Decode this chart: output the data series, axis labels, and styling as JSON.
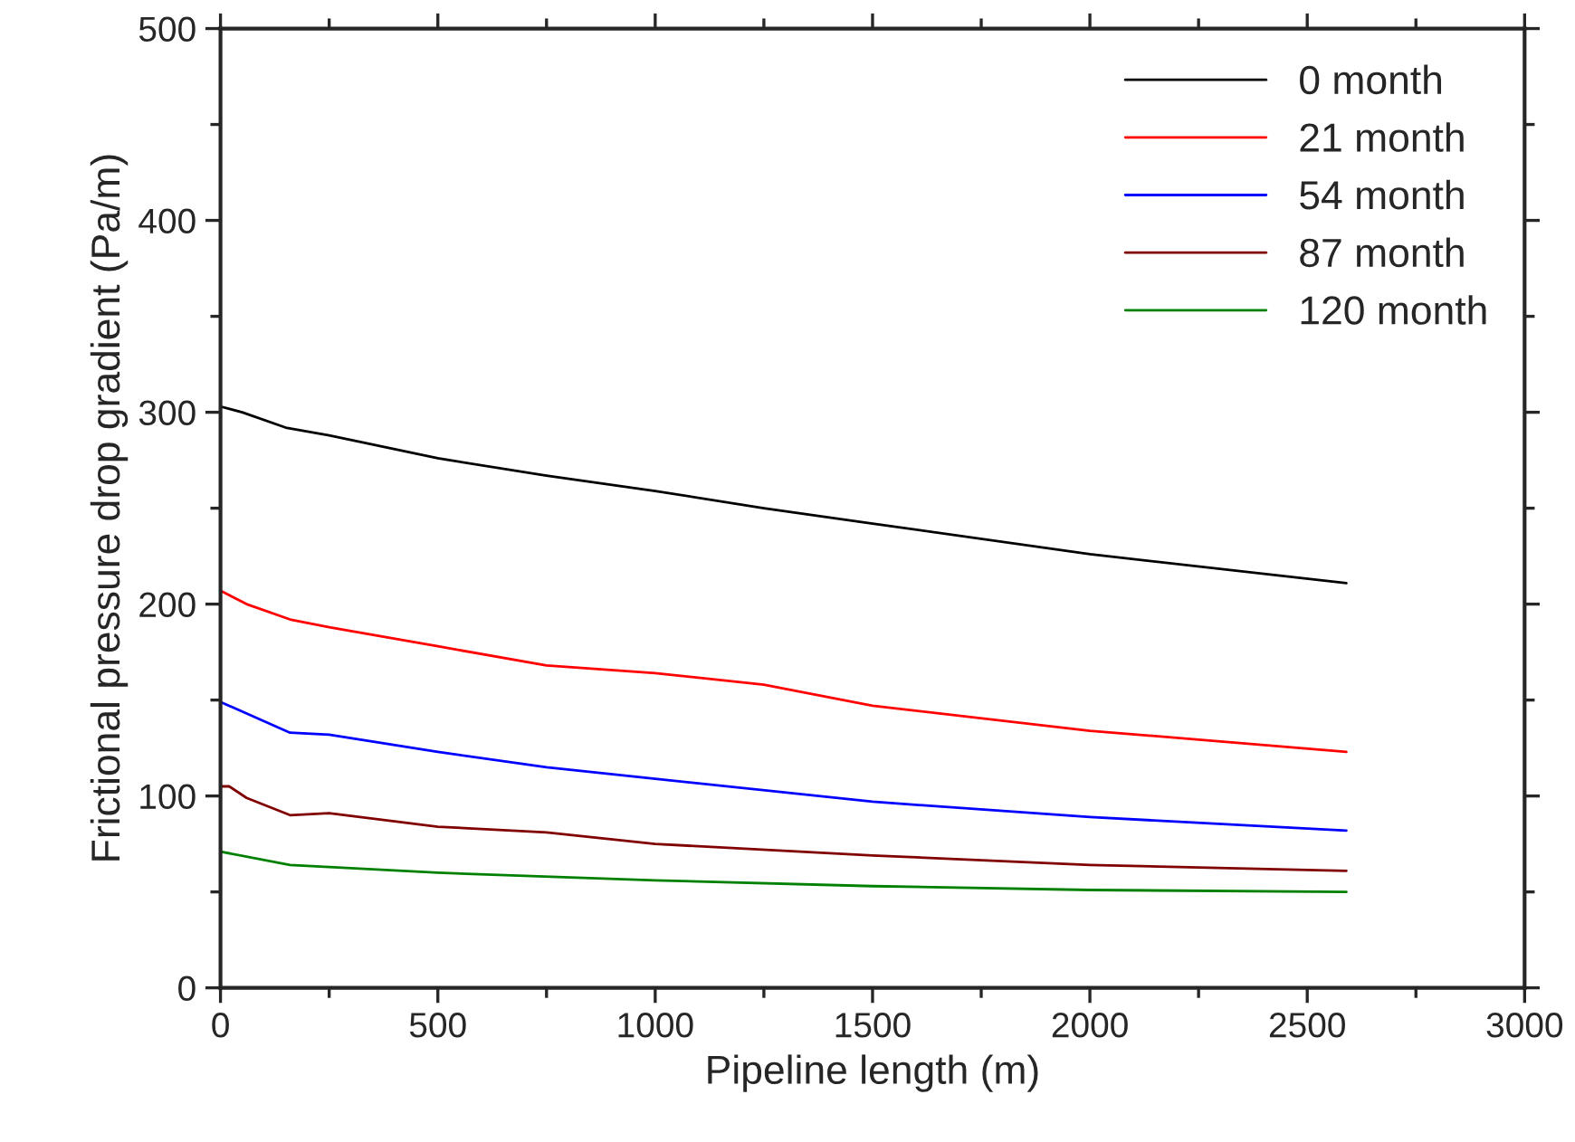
{
  "chart_data": {
    "type": "line",
    "xlabel": "Pipeline length (m)",
    "ylabel": "Frictional pressure drop gradient (Pa/m)",
    "xlim": [
      0,
      3000
    ],
    "xticks": [
      0,
      500,
      1000,
      1500,
      2000,
      2500,
      3000
    ],
    "ylim": [
      0,
      500
    ],
    "yticks": [
      0,
      100,
      200,
      300,
      400,
      500
    ],
    "grid": false,
    "legend": "top right",
    "line_style": "solid",
    "marker": "none",
    "series": [
      {
        "name": "0 month",
        "color": "#000000",
        "x": [
          0,
          50,
          150,
          250,
          500,
          750,
          1000,
          1250,
          1500,
          2000,
          2590
        ],
        "values": [
          303,
          300,
          292,
          288,
          276,
          267,
          259,
          250,
          242,
          226,
          211
        ]
      },
      {
        "name": "21 month",
        "color": "#ff0000",
        "x": [
          0,
          60,
          160,
          250,
          500,
          750,
          1000,
          1250,
          1500,
          2000,
          2590
        ],
        "values": [
          207,
          200,
          192,
          188,
          178,
          168,
          164,
          158,
          147,
          134,
          123
        ]
      },
      {
        "name": "54 month",
        "color": "#0000ff",
        "x": [
          0,
          160,
          250,
          500,
          750,
          1000,
          1500,
          2000,
          2590
        ],
        "values": [
          149,
          133,
          132,
          123,
          115,
          109,
          97,
          89,
          82
        ]
      },
      {
        "name": "87 month",
        "color": "#800000",
        "x": [
          0,
          20,
          60,
          160,
          250,
          500,
          750,
          1000,
          1500,
          2000,
          2590
        ],
        "values": [
          105,
          105,
          99,
          90,
          91,
          84,
          81,
          75,
          69,
          64,
          61
        ]
      },
      {
        "name": "120 month",
        "color": "#008000",
        "x": [
          0,
          160,
          500,
          1000,
          1500,
          2000,
          2590
        ],
        "values": [
          71,
          64,
          60,
          56,
          53,
          51,
          50
        ]
      }
    ]
  }
}
